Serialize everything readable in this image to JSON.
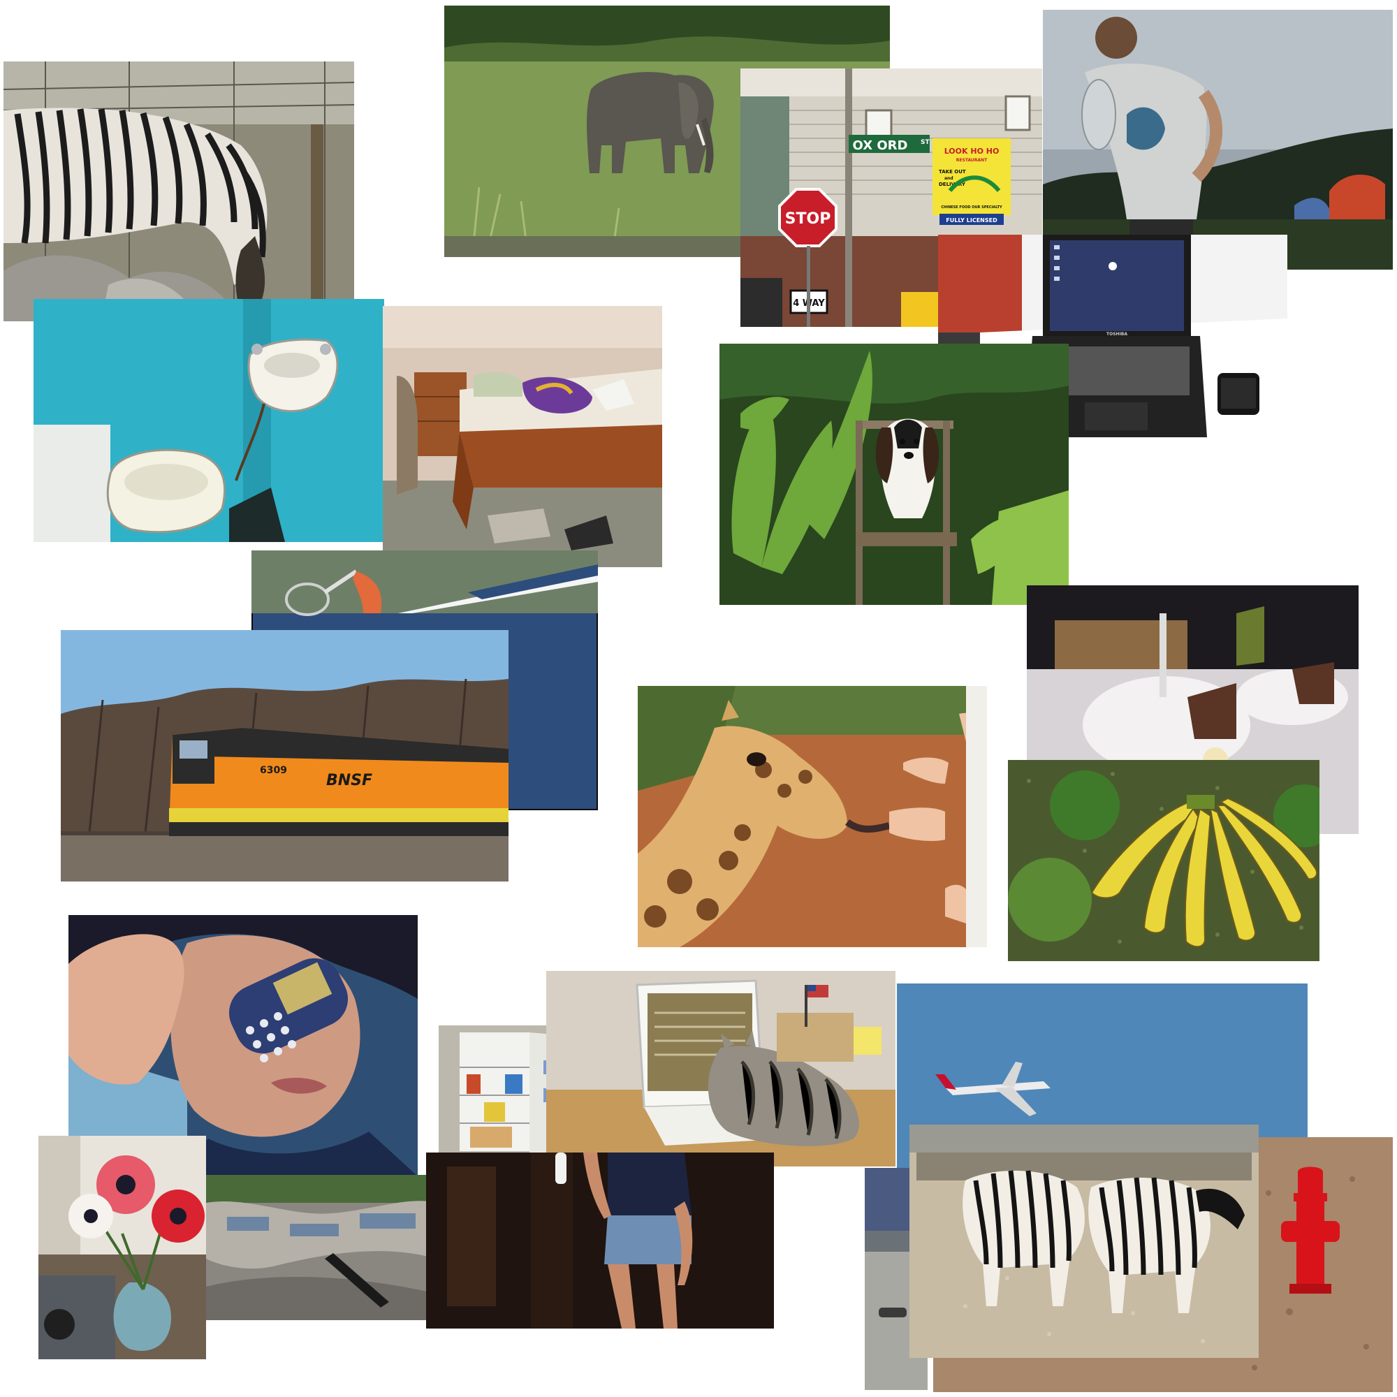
{
  "collage": {
    "signs": {
      "street_sign": "OX ORD",
      "street_suffix": "ST",
      "stop": "STOP",
      "way": "4 WAY",
      "restaurant_title": "LOOK HO HO",
      "restaurant_sub": "RESTAURANT",
      "take_out": "TAKE OUT",
      "and_text": "and",
      "delivery": "DELIVERY",
      "specialty": "CHINESE FOOD OUR SPECIALTY",
      "licensed": "FULLY LICENSED"
    },
    "train": {
      "number": "6309",
      "logo": "BNSF"
    },
    "laptop_brand": "TOSHIBA",
    "colors": {
      "background": "#ffffff",
      "sky_blue": "#4f87b9",
      "tennis_blue": "#2d4d7c",
      "bathroom_teal": "#2fb2c8",
      "train_orange": "#f08a1c",
      "hydrant_red": "#d8141a",
      "banana_yellow": "#e9d63a"
    }
  }
}
